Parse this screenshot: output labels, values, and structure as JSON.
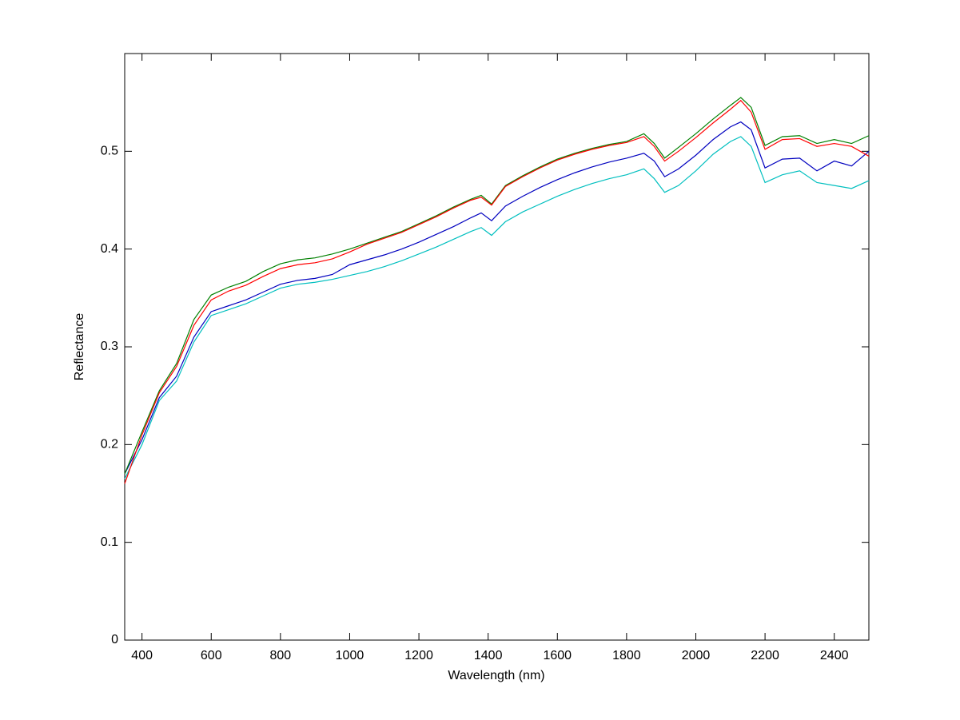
{
  "chart_data": {
    "type": "line",
    "xlabel": "Wavelength (nm)",
    "ylabel": "Reflectance",
    "x": [
      350,
      400,
      450,
      500,
      550,
      600,
      650,
      700,
      750,
      800,
      850,
      900,
      950,
      1000,
      1050,
      1100,
      1150,
      1200,
      1250,
      1300,
      1350,
      1380,
      1410,
      1450,
      1500,
      1550,
      1600,
      1650,
      1700,
      1750,
      1800,
      1850,
      1880,
      1910,
      1950,
      2000,
      2050,
      2100,
      2130,
      2160,
      2200,
      2250,
      2300,
      2350,
      2400,
      2450,
      2500
    ],
    "series": [
      {
        "color": "#00bfbf",
        "values": [
          0.165,
          0.2,
          0.245,
          0.265,
          0.305,
          0.332,
          0.338,
          0.344,
          0.352,
          0.36,
          0.364,
          0.366,
          0.369,
          0.373,
          0.377,
          0.382,
          0.388,
          0.395,
          0.402,
          0.41,
          0.418,
          0.422,
          0.414,
          0.428,
          0.438,
          0.446,
          0.454,
          0.461,
          0.467,
          0.472,
          0.476,
          0.482,
          0.472,
          0.458,
          0.465,
          0.48,
          0.497,
          0.51,
          0.515,
          0.505,
          0.468,
          0.476,
          0.48,
          0.468,
          0.465,
          0.462,
          0.47
        ]
      },
      {
        "color": "#0000bf",
        "values": [
          0.17,
          0.205,
          0.248,
          0.27,
          0.31,
          0.336,
          0.342,
          0.348,
          0.356,
          0.364,
          0.368,
          0.37,
          0.374,
          0.384,
          0.389,
          0.394,
          0.4,
          0.407,
          0.415,
          0.423,
          0.432,
          0.437,
          0.429,
          0.444,
          0.454,
          0.463,
          0.471,
          0.478,
          0.484,
          0.489,
          0.493,
          0.498,
          0.49,
          0.474,
          0.482,
          0.496,
          0.512,
          0.525,
          0.53,
          0.522,
          0.483,
          0.492,
          0.493,
          0.48,
          0.49,
          0.485,
          0.5
        ]
      },
      {
        "color": "#008000",
        "values": [
          0.17,
          0.213,
          0.255,
          0.283,
          0.328,
          0.353,
          0.361,
          0.367,
          0.377,
          0.385,
          0.389,
          0.391,
          0.395,
          0.4,
          0.406,
          0.412,
          0.418,
          0.426,
          0.434,
          0.443,
          0.451,
          0.455,
          0.446,
          0.465,
          0.475,
          0.484,
          0.492,
          0.498,
          0.503,
          0.507,
          0.51,
          0.518,
          0.508,
          0.493,
          0.504,
          0.518,
          0.533,
          0.547,
          0.555,
          0.545,
          0.506,
          0.515,
          0.516,
          0.508,
          0.512,
          0.508,
          0.516
        ]
      },
      {
        "color": "#ff0000",
        "values": [
          0.16,
          0.21,
          0.253,
          0.28,
          0.322,
          0.348,
          0.357,
          0.363,
          0.372,
          0.38,
          0.384,
          0.386,
          0.39,
          0.397,
          0.405,
          0.411,
          0.417,
          0.425,
          0.433,
          0.442,
          0.45,
          0.453,
          0.445,
          0.464,
          0.474,
          0.483,
          0.491,
          0.497,
          0.502,
          0.506,
          0.509,
          0.515,
          0.505,
          0.49,
          0.5,
          0.514,
          0.529,
          0.543,
          0.552,
          0.54,
          0.502,
          0.512,
          0.513,
          0.505,
          0.508,
          0.505,
          0.495
        ]
      }
    ],
    "xlim": [
      350,
      2500
    ],
    "xticks": [
      400,
      600,
      800,
      1000,
      1200,
      1400,
      1600,
      1800,
      2000,
      2200,
      2400
    ],
    "ylim": [
      0,
      0.6
    ],
    "yticks": [
      0,
      0.1,
      0.2,
      0.3,
      0.4,
      0.5
    ],
    "grid": false
  }
}
